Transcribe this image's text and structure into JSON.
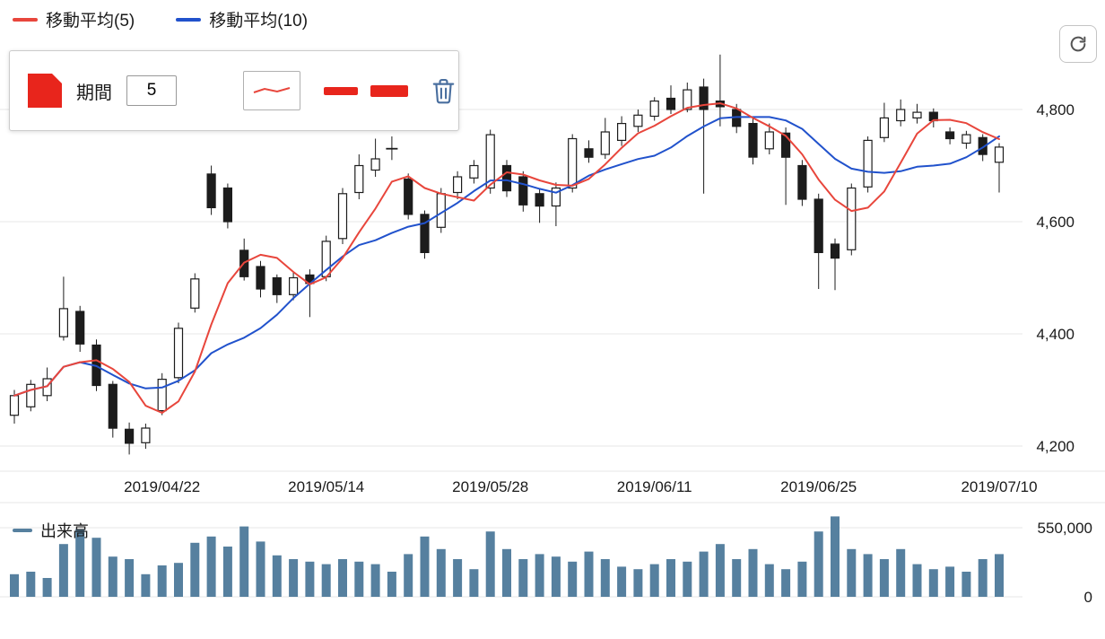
{
  "legend": {
    "ma5": "移動平均(5)",
    "ma10": "移動平均(10)"
  },
  "settings_panel": {
    "period_label": "期間",
    "period_value": "5"
  },
  "volume": {
    "legend_label": "出来高"
  },
  "colors": {
    "ma5": "#e8463c",
    "ma10": "#2152cc",
    "panel_red": "#e8251c",
    "trash": "#4a6f9f",
    "volume_bar": "#56809f",
    "candle": "#1c1c1c",
    "grid": "#e7e7e7"
  },
  "axes": {
    "price_ticks": [
      {
        "label": "4,800",
        "value": 4800
      },
      {
        "label": "4,600",
        "value": 4600
      },
      {
        "label": "4,400",
        "value": 4400
      },
      {
        "label": "4,200",
        "value": 4200
      }
    ],
    "date_ticks": [
      "2019/04/22",
      "2019/05/14",
      "2019/05/28",
      "2019/06/11",
      "2019/06/25",
      "2019/07/10"
    ],
    "volume_ticks": [
      {
        "label": "550,000",
        "value": 550000
      },
      {
        "label": "0",
        "value": 0
      }
    ]
  },
  "chart_data": {
    "type": "candlestick",
    "title": "",
    "series": [
      {
        "name": "移動平均(5)",
        "type": "line",
        "derived": "sma",
        "period": 5,
        "color": "#e8463c"
      },
      {
        "name": "移動平均(10)",
        "type": "line",
        "derived": "sma",
        "period": 10,
        "color": "#2152cc"
      },
      {
        "name": "出来高",
        "type": "bar",
        "color": "#56809f"
      }
    ],
    "price_axis": {
      "min": 4150,
      "max": 4900,
      "gridlines": [
        4200,
        4400,
        4600,
        4800
      ]
    },
    "volume_axis": {
      "min": 0,
      "max": 660000,
      "gridlines": [
        0,
        550000
      ]
    },
    "columns": [
      "date",
      "open",
      "high",
      "low",
      "close",
      "volume"
    ],
    "candles": [
      [
        "2019/04/09",
        4255,
        4300,
        4240,
        4290,
        180000
      ],
      [
        "2019/04/10",
        4270,
        4318,
        4262,
        4310,
        200000
      ],
      [
        "2019/04/11",
        4290,
        4340,
        4280,
        4320,
        150000
      ],
      [
        "2019/04/12",
        4395,
        4502,
        4388,
        4445,
        420000
      ],
      [
        "2019/04/15",
        4440,
        4450,
        4368,
        4382,
        540000
      ],
      [
        "2019/04/16",
        4380,
        4390,
        4298,
        4308,
        470000
      ],
      [
        "2019/04/17",
        4310,
        4316,
        4215,
        4232,
        320000
      ],
      [
        "2019/04/18",
        4230,
        4242,
        4185,
        4205,
        300000
      ],
      [
        "2019/04/19",
        4206,
        4240,
        4195,
        4232,
        180000
      ],
      [
        "2019/04/22",
        4263,
        4330,
        4255,
        4319,
        250000
      ],
      [
        "2019/04/23",
        4322,
        4420,
        4312,
        4410,
        270000
      ],
      [
        "2019/04/24",
        4446,
        4508,
        4438,
        4498,
        430000
      ],
      [
        "2019/04/25",
        4685,
        4700,
        4612,
        4625,
        480000
      ],
      [
        "2019/04/26",
        4660,
        4668,
        4588,
        4600,
        400000
      ],
      [
        "2019/05/07",
        4549,
        4570,
        4495,
        4502,
        560000
      ],
      [
        "2019/05/08",
        4520,
        4530,
        4465,
        4480,
        440000
      ],
      [
        "2019/05/09",
        4500,
        4506,
        4455,
        4470,
        330000
      ],
      [
        "2019/05/10",
        4470,
        4510,
        4460,
        4500,
        300000
      ],
      [
        "2019/05/13",
        4505,
        4515,
        4430,
        4490,
        280000
      ],
      [
        "2019/05/14",
        4502,
        4575,
        4494,
        4565,
        260000
      ],
      [
        "2019/05/15",
        4570,
        4660,
        4560,
        4650,
        300000
      ],
      [
        "2019/05/16",
        4652,
        4720,
        4640,
        4700,
        280000
      ],
      [
        "2019/05/17",
        4692,
        4748,
        4680,
        4712,
        260000
      ],
      [
        "2019/05/20",
        4730,
        4752,
        4710,
        4730,
        200000
      ],
      [
        "2019/05/21",
        4676,
        4686,
        4604,
        4613,
        340000
      ],
      [
        "2019/05/22",
        4613,
        4620,
        4534,
        4545,
        480000
      ],
      [
        "2019/05/23",
        4590,
        4660,
        4580,
        4650,
        380000
      ],
      [
        "2019/05/24",
        4652,
        4690,
        4640,
        4680,
        300000
      ],
      [
        "2019/05/27",
        4678,
        4710,
        4668,
        4700,
        220000
      ],
      [
        "2019/05/28",
        4660,
        4764,
        4650,
        4755,
        520000
      ],
      [
        "2019/05/29",
        4700,
        4710,
        4644,
        4655,
        380000
      ],
      [
        "2019/05/30",
        4680,
        4690,
        4618,
        4630,
        300000
      ],
      [
        "2019/05/31",
        4650,
        4660,
        4598,
        4628,
        340000
      ],
      [
        "2019/06/03",
        4628,
        4670,
        4592,
        4660,
        320000
      ],
      [
        "2019/06/04",
        4660,
        4756,
        4652,
        4748,
        280000
      ],
      [
        "2019/06/05",
        4730,
        4745,
        4705,
        4715,
        360000
      ],
      [
        "2019/06/06",
        4720,
        4785,
        4712,
        4760,
        300000
      ],
      [
        "2019/06/07",
        4745,
        4788,
        4735,
        4775,
        240000
      ],
      [
        "2019/06/10",
        4770,
        4800,
        4760,
        4790,
        220000
      ],
      [
        "2019/06/11",
        4788,
        4822,
        4780,
        4815,
        260000
      ],
      [
        "2019/06/12",
        4820,
        4843,
        4792,
        4800,
        300000
      ],
      [
        "2019/06/13",
        4800,
        4848,
        4795,
        4835,
        280000
      ],
      [
        "2019/06/14",
        4840,
        4855,
        4650,
        4800,
        360000
      ],
      [
        "2019/06/17",
        4815,
        4898,
        4770,
        4805,
        420000
      ],
      [
        "2019/06/18",
        4800,
        4810,
        4758,
        4770,
        300000
      ],
      [
        "2019/06/19",
        4775,
        4785,
        4702,
        4715,
        380000
      ],
      [
        "2019/06/20",
        4730,
        4775,
        4720,
        4760,
        260000
      ],
      [
        "2019/06/21",
        4758,
        4768,
        4630,
        4715,
        220000
      ],
      [
        "2019/06/24",
        4700,
        4710,
        4628,
        4640,
        280000
      ],
      [
        "2019/06/25",
        4640,
        4650,
        4480,
        4545,
        520000
      ],
      [
        "2019/06/26",
        4560,
        4570,
        4478,
        4535,
        640000
      ],
      [
        "2019/06/27",
        4550,
        4668,
        4540,
        4660,
        380000
      ],
      [
        "2019/06/28",
        4662,
        4752,
        4652,
        4745,
        340000
      ],
      [
        "2019/07/01",
        4750,
        4812,
        4742,
        4785,
        300000
      ],
      [
        "2019/07/02",
        4780,
        4818,
        4770,
        4800,
        380000
      ],
      [
        "2019/07/03",
        4785,
        4810,
        4775,
        4795,
        260000
      ],
      [
        "2019/07/04",
        4795,
        4802,
        4768,
        4780,
        220000
      ],
      [
        "2019/07/05",
        4760,
        4768,
        4738,
        4748,
        240000
      ],
      [
        "2019/07/08",
        4740,
        4762,
        4730,
        4755,
        200000
      ],
      [
        "2019/07/09",
        4750,
        4756,
        4708,
        4720,
        300000
      ],
      [
        "2019/07/10",
        4706,
        4740,
        4652,
        4733,
        340000
      ]
    ]
  }
}
